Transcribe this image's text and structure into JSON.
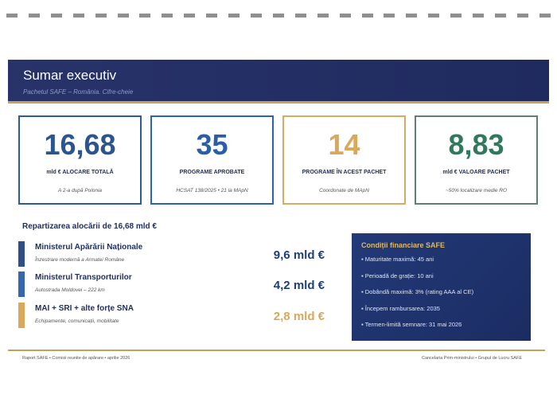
{
  "header": {
    "title": "Sumar executiv",
    "subtitle": "Pachetul SAFE – România. Cifre-cheie"
  },
  "cards": [
    {
      "value": "16,68",
      "label": "mld € ALOCARE TOTALĂ",
      "note": "A 2-a după Polonia",
      "color": "#2a5590"
    },
    {
      "value": "35",
      "label": "PROGRAME APROBATE",
      "note": "HCSAT 138/2025 • 21 la MApN",
      "color": "#2a5fa8"
    },
    {
      "value": "14",
      "label": "PROGRAME ÎN ACEST PACHET",
      "note": "Coordonate de MApN",
      "color": "#d9a85a"
    },
    {
      "value": "8,83",
      "label": "mld € VALOARE PACHET",
      "note": "~50% localizare medie RO",
      "color": "#2f7a5c"
    }
  ],
  "allocation": {
    "title": "Repartizarea alocării de 16,68 mld €",
    "rows": [
      {
        "name": "Ministerul Apărării Naționale",
        "desc": "Înzestrare modernă a Armatei Române",
        "value": "9,6 mld €",
        "color": "#2f4f8a"
      },
      {
        "name": "Ministerul Transporturilor",
        "desc": "Autostrada Moldovei – 222 km",
        "value": "4,2 mld €",
        "color": "#3567ae"
      },
      {
        "name": "MAI + SRI + alte forțe SNA",
        "desc": "Echipamente, comunicații, mobilitate",
        "value": "2,8 mld €",
        "color": "#d9a85a"
      }
    ]
  },
  "financial": {
    "title": "Condiții financiare SAFE",
    "items": [
      "Maturitate maximă: 45 ani",
      "Perioadă de grație: 10 ani",
      "Dobândă maximă: 3% (rating AAA al CE)",
      "Începem rambursarea: 2035",
      "Termen-limită semnare: 31 mai 2026"
    ]
  },
  "footer": {
    "left": "Raport SAFE  •  Comisii reunite de apărare  •  aprilie 2026",
    "right": "Cancelaria Prim-ministrului  •  Grupul de Lucru SAFE"
  }
}
